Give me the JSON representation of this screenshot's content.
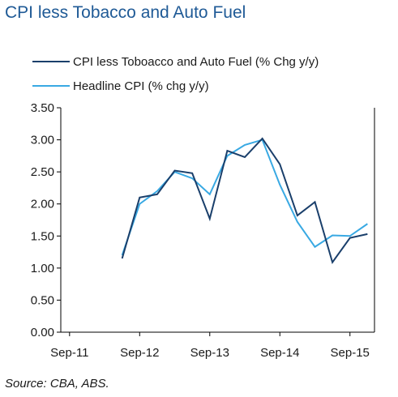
{
  "chart_data": {
    "type": "line",
    "title": "CPI less Tobacco and Auto Fuel",
    "source": "Source:  CBA, ABS.",
    "x": [
      "Sep-11",
      "Dec-11",
      "Mar-12",
      "Jun-12",
      "Sep-12",
      "Dec-12",
      "Mar-13",
      "Jun-13",
      "Sep-13",
      "Dec-13",
      "Mar-14",
      "Jun-14",
      "Sep-14",
      "Dec-14",
      "Mar-15",
      "Jun-15",
      "Sep-15",
      "Dec-15"
    ],
    "xticks": [
      "Sep-11",
      "Sep-12",
      "Sep-13",
      "Sep-14",
      "Sep-15"
    ],
    "xlim": [
      -0.5,
      17.4
    ],
    "ylim": [
      0,
      3.5
    ],
    "yticks": [
      "3.50",
      "3.00",
      "2.50",
      "2.00",
      "1.50",
      "1.00",
      "0.50",
      "0.00"
    ],
    "legend_placement": "top",
    "grid": false,
    "series": [
      {
        "name": "CPI less Toboacco and Auto Fuel (% Chg y/y)",
        "color": "#1a3f6b",
        "values": [
          null,
          null,
          null,
          1.15,
          2.1,
          2.15,
          2.52,
          2.48,
          1.77,
          2.83,
          2.73,
          3.02,
          2.62,
          1.82,
          2.03,
          1.09,
          1.47,
          1.53
        ]
      },
      {
        "name": "Headline CPI (% chg y/y)",
        "color": "#39a9e3",
        "values": [
          null,
          null,
          null,
          1.2,
          2.0,
          2.2,
          2.5,
          2.4,
          2.15,
          2.75,
          2.92,
          3.0,
          2.3,
          1.72,
          1.33,
          1.51,
          1.5,
          1.69
        ]
      }
    ]
  }
}
